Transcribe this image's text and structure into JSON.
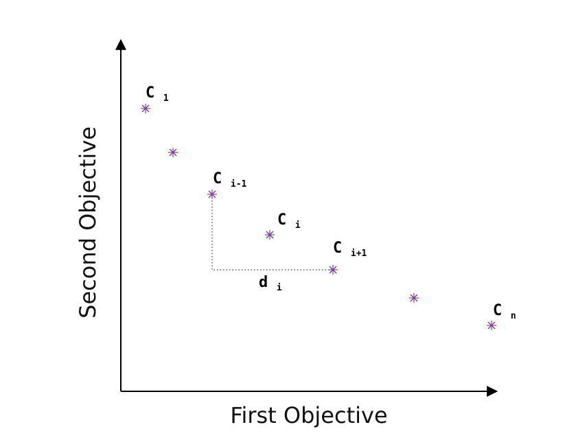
{
  "x_axis_label": "First Objective",
  "y_axis_label": "Second Objective",
  "marker_colors": {
    "vertical": "#e04545",
    "diagonal": "#3a4fd0"
  },
  "axis_color": "#000000",
  "points": [
    {
      "name": "C",
      "sub": "1"
    },
    {
      "name": "",
      "sub": ""
    },
    {
      "name": "C",
      "sub": "i-1"
    },
    {
      "name": "C",
      "sub": "i"
    },
    {
      "name": "C",
      "sub": "i+1"
    },
    {
      "name": "",
      "sub": ""
    },
    {
      "name": "C",
      "sub": "n"
    }
  ],
  "distance_label": {
    "name": "d",
    "sub": "i"
  }
}
